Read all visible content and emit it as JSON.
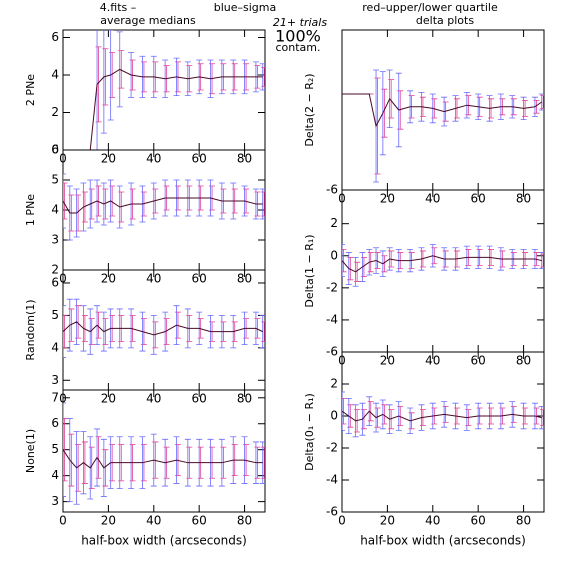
{
  "header": {
    "title": "4.fits  –",
    "sigma_label": "blue–sigma",
    "quartile_label": "red–upper/lower quartile",
    "left_title": "average medians",
    "right_title": "delta plots",
    "trials": "21+ trials",
    "contam": "100%",
    "contam_label": "contam.",
    "sigma_color": "#6a6aff",
    "quartile_color": "#e0409a",
    "line_color": "#4a0a28"
  },
  "chart_data": [
    {
      "type": "errorbar",
      "ylabel": "2 PNe",
      "x": [
        0,
        3,
        6,
        9,
        12,
        15,
        18,
        21,
        25,
        30,
        35,
        40,
        45,
        50,
        55,
        60,
        65,
        70,
        75,
        80,
        85,
        88
      ],
      "values": [
        0,
        0,
        0,
        0,
        0,
        3.5,
        3.9,
        4.0,
        4.3,
        4.0,
        3.9,
        3.9,
        3.8,
        3.9,
        3.8,
        3.9,
        3.8,
        3.9,
        3.9,
        3.9,
        3.9,
        3.9
      ],
      "sigma": [
        0,
        0,
        0,
        0,
        0,
        3.5,
        3.0,
        2.4,
        2.0,
        1.2,
        1.1,
        1.1,
        1.0,
        1.0,
        0.9,
        0.9,
        1.0,
        0.9,
        0.9,
        0.9,
        0.8,
        0.7
      ],
      "quartile": [
        0,
        0,
        0,
        0,
        0,
        2.0,
        1.5,
        1.2,
        1.0,
        0.8,
        0.8,
        0.8,
        0.7,
        0.8,
        0.7,
        0.7,
        0.8,
        0.7,
        0.7,
        0.7,
        0.6,
        0.5
      ],
      "xlim": [
        0,
        89
      ],
      "xticks": [
        0,
        20,
        40,
        60,
        80
      ],
      "ylim": [
        0,
        6.4
      ],
      "yticks": [
        0,
        2,
        4,
        6
      ]
    },
    {
      "type": "errorbar",
      "ylabel": "1 PNe",
      "x": [
        0,
        3,
        6,
        9,
        12,
        15,
        18,
        21,
        25,
        30,
        35,
        40,
        45,
        50,
        55,
        60,
        65,
        70,
        75,
        80,
        85,
        88
      ],
      "values": [
        4.3,
        3.9,
        3.9,
        4.1,
        4.2,
        4.3,
        4.2,
        4.3,
        4.1,
        4.2,
        4.2,
        4.3,
        4.4,
        4.4,
        4.4,
        4.4,
        4.4,
        4.3,
        4.3,
        4.3,
        4.2,
        4.2
      ],
      "sigma": [
        0.9,
        0.9,
        0.8,
        0.8,
        0.8,
        0.7,
        0.7,
        0.7,
        0.7,
        0.7,
        0.6,
        0.6,
        0.6,
        0.6,
        0.6,
        0.6,
        0.6,
        0.6,
        0.6,
        0.5,
        0.5,
        0.5
      ],
      "quartile": [
        0.6,
        0.6,
        0.6,
        0.5,
        0.5,
        0.5,
        0.5,
        0.5,
        0.5,
        0.5,
        0.4,
        0.4,
        0.4,
        0.4,
        0.4,
        0.4,
        0.4,
        0.4,
        0.4,
        0.4,
        0.4,
        0.4
      ],
      "xlim": [
        0,
        89
      ],
      "xticks": [
        0,
        20,
        40,
        60,
        80
      ],
      "ylim": [
        2,
        6
      ],
      "yticks": [
        2,
        3,
        4,
        5,
        6
      ]
    },
    {
      "type": "errorbar",
      "ylabel": "Random(1)",
      "x": [
        0,
        3,
        6,
        9,
        12,
        15,
        18,
        21,
        25,
        30,
        35,
        40,
        45,
        50,
        55,
        60,
        65,
        70,
        75,
        80,
        85,
        88
      ],
      "values": [
        4.5,
        4.7,
        4.8,
        4.6,
        4.5,
        4.7,
        4.5,
        4.6,
        4.6,
        4.6,
        4.5,
        4.4,
        4.5,
        4.7,
        4.6,
        4.6,
        4.5,
        4.5,
        4.5,
        4.6,
        4.6,
        4.5
      ],
      "sigma": [
        0.8,
        0.8,
        0.7,
        0.7,
        0.7,
        0.6,
        0.6,
        0.6,
        0.6,
        0.6,
        0.6,
        0.6,
        0.6,
        0.6,
        0.6,
        0.5,
        0.5,
        0.5,
        0.5,
        0.5,
        0.5,
        0.5
      ],
      "quartile": [
        0.5,
        0.5,
        0.5,
        0.4,
        0.4,
        0.4,
        0.4,
        0.4,
        0.4,
        0.4,
        0.4,
        0.4,
        0.4,
        0.4,
        0.4,
        0.3,
        0.3,
        0.3,
        0.3,
        0.3,
        0.3,
        0.3
      ],
      "xlim": [
        0,
        89
      ],
      "xticks": [
        0,
        20,
        40,
        60,
        80
      ],
      "ylim": [
        2.7,
        6.4
      ],
      "yticks": [
        3,
        4,
        5,
        6
      ]
    },
    {
      "type": "errorbar",
      "ylabel": "None(1)",
      "xlabel": "half-box width (arcseconds)",
      "x": [
        0,
        3,
        6,
        9,
        12,
        15,
        18,
        21,
        25,
        30,
        35,
        40,
        45,
        50,
        55,
        60,
        65,
        70,
        75,
        80,
        85,
        88
      ],
      "values": [
        5.0,
        4.6,
        4.3,
        4.5,
        4.3,
        4.7,
        4.3,
        4.5,
        4.5,
        4.5,
        4.5,
        4.6,
        4.5,
        4.6,
        4.5,
        4.5,
        4.5,
        4.5,
        4.6,
        4.6,
        4.5,
        4.5
      ],
      "sigma": [
        1.8,
        1.6,
        1.4,
        1.2,
        1.2,
        1.1,
        1.1,
        1.0,
        1.0,
        1.0,
        1.0,
        1.0,
        0.9,
        0.9,
        0.9,
        0.9,
        0.9,
        0.9,
        0.9,
        0.9,
        0.8,
        0.8
      ],
      "quartile": [
        1.2,
        1.0,
        0.9,
        0.8,
        0.8,
        0.8,
        0.7,
        0.7,
        0.7,
        0.7,
        0.7,
        0.7,
        0.6,
        0.6,
        0.6,
        0.6,
        0.6,
        0.6,
        0.6,
        0.6,
        0.6,
        0.6
      ],
      "xlim": [
        0,
        89
      ],
      "xticks": [
        0,
        20,
        40,
        60,
        80
      ],
      "ylim": [
        2.6,
        7.3
      ],
      "yticks": [
        3,
        4,
        5,
        6,
        7
      ]
    },
    {
      "type": "errorbar",
      "ylabel": "Delta(2 − R₂)",
      "x": [
        0,
        3,
        6,
        9,
        12,
        15,
        18,
        21,
        25,
        30,
        35,
        40,
        45,
        50,
        55,
        60,
        65,
        70,
        75,
        80,
        85,
        88
      ],
      "values": [
        0,
        0,
        0,
        0,
        0,
        -2.0,
        -1.2,
        -0.3,
        -1.0,
        -0.8,
        -0.8,
        -0.9,
        -1.1,
        -0.9,
        -0.7,
        -0.8,
        -0.9,
        -0.8,
        -0.8,
        -0.9,
        -0.8,
        -0.5
      ],
      "sigma": [
        0,
        0,
        0,
        0,
        0,
        3.5,
        2.6,
        1.8,
        2.3,
        1.0,
        0.9,
        0.9,
        0.9,
        0.8,
        0.8,
        0.8,
        0.8,
        0.8,
        0.7,
        0.7,
        0.6,
        0.5
      ],
      "quartile": [
        0,
        0,
        0,
        0,
        0,
        3.0,
        1.5,
        1.2,
        1.2,
        0.7,
        0.6,
        0.6,
        0.6,
        0.6,
        0.6,
        0.6,
        0.6,
        0.5,
        0.5,
        0.5,
        0.4,
        0.4
      ],
      "xlim": [
        0,
        89
      ],
      "xticks": [
        0,
        20,
        40,
        60,
        80
      ],
      "ylim": [
        -6,
        4
      ],
      "yticks": [
        -6
      ]
    },
    {
      "type": "errorbar",
      "ylabel": "Delta(1 − R₁)",
      "x": [
        0,
        3,
        6,
        9,
        12,
        15,
        18,
        21,
        25,
        30,
        35,
        40,
        45,
        50,
        55,
        60,
        65,
        70,
        75,
        80,
        85,
        88
      ],
      "values": [
        -0.3,
        -0.8,
        -1.0,
        -0.7,
        -0.4,
        -0.3,
        -0.5,
        -0.2,
        -0.3,
        -0.3,
        -0.2,
        0,
        -0.2,
        -0.2,
        -0.1,
        -0.1,
        -0.1,
        -0.2,
        -0.2,
        -0.2,
        -0.2,
        -0.3
      ],
      "sigma": [
        1.0,
        1.0,
        0.9,
        0.9,
        0.8,
        0.8,
        0.8,
        0.7,
        0.7,
        0.7,
        0.7,
        0.7,
        0.7,
        0.7,
        0.7,
        0.7,
        0.7,
        0.7,
        0.6,
        0.6,
        0.6,
        0.5
      ],
      "quartile": [
        0.7,
        0.7,
        0.6,
        0.6,
        0.6,
        0.5,
        0.5,
        0.5,
        0.5,
        0.5,
        0.5,
        0.5,
        0.5,
        0.5,
        0.5,
        0.5,
        0.5,
        0.5,
        0.4,
        0.4,
        0.4,
        0.4
      ],
      "xlim": [
        0,
        89
      ],
      "xticks": [
        0,
        20,
        40,
        60,
        80
      ],
      "ylim": [
        -6,
        4.1
      ],
      "yticks": [
        -6,
        -4,
        -2,
        0,
        2
      ]
    },
    {
      "type": "errorbar",
      "ylabel": "Delta(0₁ − R₁)",
      "xlabel": "half-box width (arcseconds)",
      "x": [
        0,
        3,
        6,
        9,
        12,
        15,
        18,
        21,
        25,
        30,
        35,
        40,
        45,
        50,
        55,
        60,
        65,
        70,
        75,
        80,
        85,
        88
      ],
      "values": [
        0.3,
        0,
        -0.3,
        -0.2,
        0.3,
        -0.1,
        0.1,
        -0.2,
        0,
        -0.3,
        -0.1,
        0,
        0.1,
        0,
        -0.1,
        0,
        0,
        0,
        0.1,
        0,
        0,
        -0.1
      ],
      "sigma": [
        1.2,
        1.1,
        1.0,
        1.0,
        0.9,
        0.9,
        0.9,
        0.9,
        0.9,
        0.8,
        0.8,
        0.8,
        0.8,
        0.8,
        0.8,
        0.8,
        0.8,
        0.8,
        0.8,
        0.8,
        0.8,
        0.7
      ],
      "quartile": [
        0.8,
        0.7,
        0.7,
        0.6,
        0.6,
        0.6,
        0.6,
        0.6,
        0.6,
        0.5,
        0.5,
        0.5,
        0.5,
        0.5,
        0.5,
        0.5,
        0.5,
        0.5,
        0.5,
        0.5,
        0.5,
        0.5
      ],
      "xlim": [
        0,
        89
      ],
      "xticks": [
        0,
        20,
        40,
        60,
        80
      ],
      "ylim": [
        -6,
        4
      ],
      "yticks": [
        -6,
        -4,
        -2,
        0,
        2
      ]
    }
  ]
}
